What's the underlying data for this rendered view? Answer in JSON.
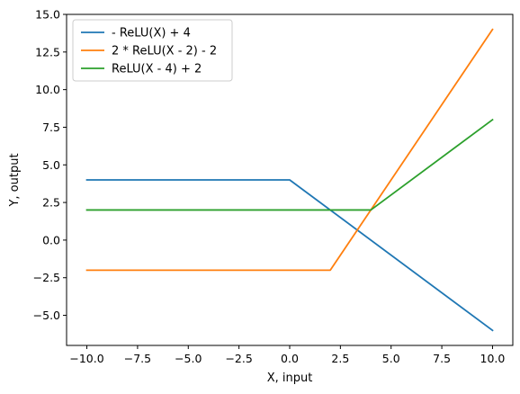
{
  "chart_data": {
    "type": "line",
    "title": "",
    "xlabel": "X, input",
    "ylabel": "Y, output",
    "xlim": [
      -11,
      11
    ],
    "ylim": [
      -7,
      15
    ],
    "xticks": [
      -10.0,
      -7.5,
      -5.0,
      -2.5,
      0.0,
      2.5,
      5.0,
      7.5,
      10.0
    ],
    "xtick_labels": [
      "−10.0",
      "−7.5",
      "−5.0",
      "−2.5",
      "0.0",
      "2.5",
      "5.0",
      "7.5",
      "10.0"
    ],
    "yticks": [
      15.0,
      12.5,
      10.0,
      7.5,
      5.0,
      2.5,
      0.0,
      -2.5,
      -5.0
    ],
    "ytick_labels": [
      "15.0",
      "12.5",
      "10.0",
      "7.5",
      "5.0",
      "2.5",
      "0.0",
      "−2.5",
      "−5.0"
    ],
    "grid": false,
    "legend_position": "top-left",
    "series": [
      {
        "name": "- ReLU(X) + 4",
        "color": "#1f77b4",
        "x": [
          -10,
          0,
          10
        ],
        "y": [
          4,
          4,
          -6
        ]
      },
      {
        "name": "2 * ReLU(X - 2) - 2",
        "color": "#ff7f0e",
        "x": [
          -10,
          2,
          10
        ],
        "y": [
          -2,
          -2,
          14
        ]
      },
      {
        "name": "ReLU(X - 4) + 2",
        "color": "#2ca02c",
        "x": [
          -10,
          4,
          10
        ],
        "y": [
          2,
          2,
          8
        ]
      }
    ]
  }
}
